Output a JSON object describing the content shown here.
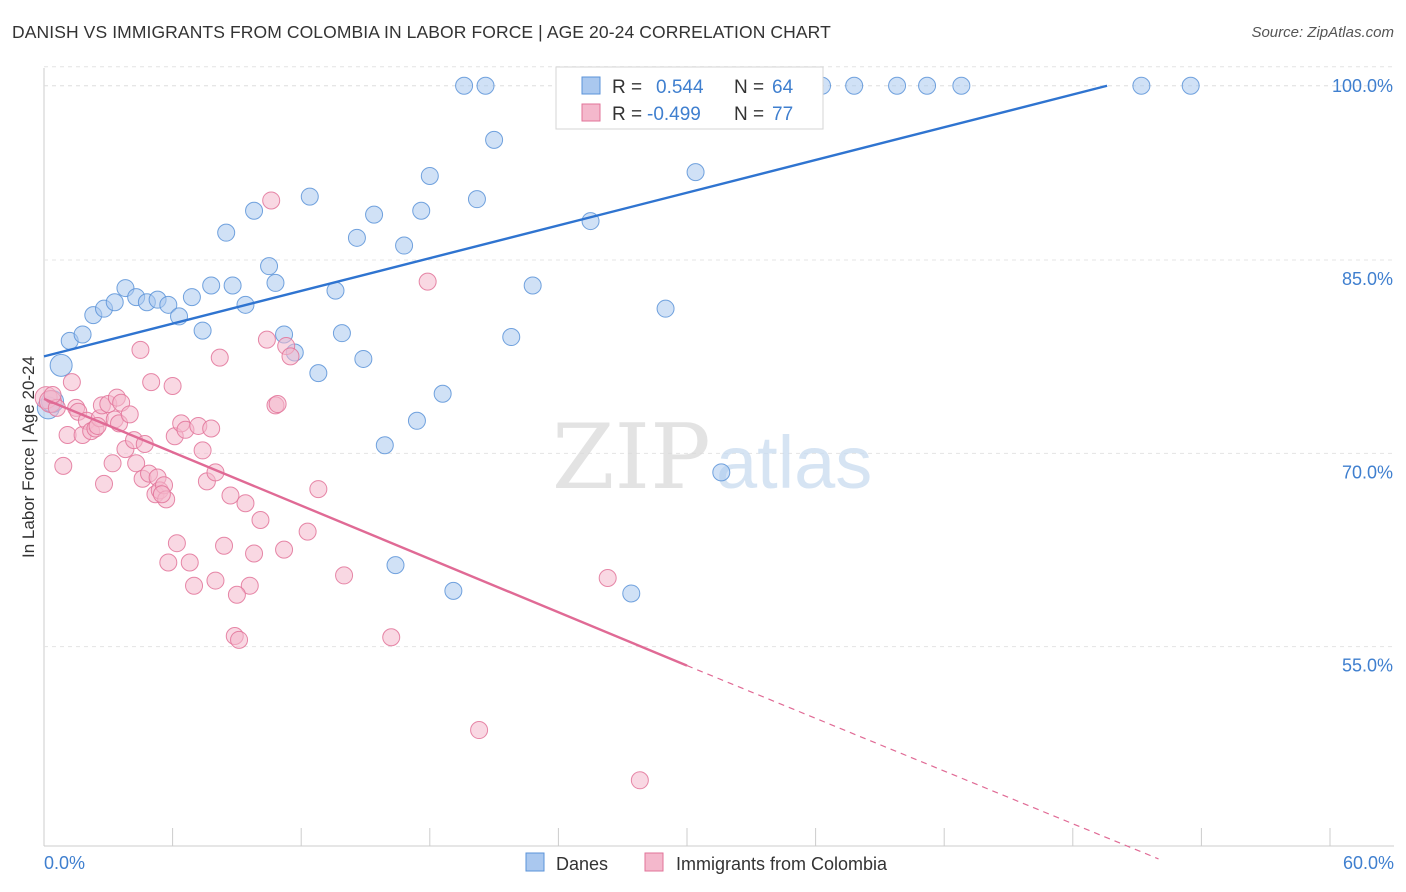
{
  "header": {
    "title": "DANISH VS IMMIGRANTS FROM COLOMBIA IN LABOR FORCE | AGE 20-24 CORRELATION CHART",
    "source": "Source: ZipAtlas.com"
  },
  "watermark": {
    "zip": "ZIP",
    "atlas": "atlas"
  },
  "legend_box": {
    "rows": [
      {
        "r_label": "R =",
        "r_value": "0.544",
        "n_label": "N =",
        "n_value": "64"
      },
      {
        "r_label": "R =",
        "r_value": "-0.499",
        "n_label": "N =",
        "n_value": "77"
      }
    ]
  },
  "bottom_legend": {
    "items": [
      "Danes",
      "Immigrants from Colombia"
    ]
  },
  "colors": {
    "blue": "#5b93d8",
    "blue_fill": "#aac8ef",
    "pink": "#e27399",
    "pink_fill": "#f4b8cc",
    "tick_text": "#3f7fcf"
  },
  "chart_data": {
    "type": "scatter",
    "title": "DANISH VS IMMIGRANTS FROM COLOMBIA IN LABOR FORCE | AGE 20-24 CORRELATION CHART",
    "xlabel": "",
    "ylabel": "In Labor Force | Age 20-24",
    "xlim": [
      0,
      60
    ],
    "ylim": [
      41,
      102
    ],
    "x_tick_labels": [
      "0.0%",
      "60.0%"
    ],
    "y_ticks": [
      55,
      70,
      85,
      100
    ],
    "y_tick_labels": [
      "55.0%",
      "70.0%",
      "85.0%",
      "100.0%"
    ],
    "grid": true,
    "legend_position": "top-center",
    "series": [
      {
        "name": "Danes",
        "color": "#5b93d8",
        "R": 0.544,
        "N": 64,
        "trend": {
          "x": [
            0,
            49.6
          ],
          "y": [
            79.0,
            100.0
          ],
          "dashed_to": null
        },
        "points": [
          [
            0.2,
            75.0
          ],
          [
            0.4,
            75.5
          ],
          [
            0.8,
            78.3
          ],
          [
            1.2,
            80.2
          ],
          [
            1.8,
            80.7
          ],
          [
            2.3,
            82.2
          ],
          [
            2.8,
            82.7
          ],
          [
            3.3,
            83.2
          ],
          [
            3.8,
            84.3
          ],
          [
            4.3,
            83.6
          ],
          [
            4.8,
            83.2
          ],
          [
            5.3,
            83.4
          ],
          [
            5.8,
            83.0
          ],
          [
            6.3,
            82.1
          ],
          [
            6.9,
            83.6
          ],
          [
            7.4,
            81.0
          ],
          [
            7.8,
            84.5
          ],
          [
            8.5,
            88.6
          ],
          [
            8.8,
            84.5
          ],
          [
            9.4,
            83.0
          ],
          [
            9.8,
            90.3
          ],
          [
            10.5,
            86.0
          ],
          [
            10.8,
            84.7
          ],
          [
            11.2,
            80.7
          ],
          [
            11.7,
            79.3
          ],
          [
            12.4,
            91.4
          ],
          [
            12.8,
            77.7
          ],
          [
            13.6,
            84.1
          ],
          [
            13.9,
            80.8
          ],
          [
            14.6,
            88.2
          ],
          [
            14.9,
            78.8
          ],
          [
            15.4,
            90.0
          ],
          [
            15.9,
            72.1
          ],
          [
            16.4,
            62.8
          ],
          [
            16.8,
            87.6
          ],
          [
            17.4,
            74.0
          ],
          [
            17.6,
            90.3
          ],
          [
            18.0,
            93.0
          ],
          [
            18.6,
            76.1
          ],
          [
            19.1,
            60.8
          ],
          [
            19.6,
            100.0
          ],
          [
            20.2,
            91.2
          ],
          [
            20.6,
            100.0
          ],
          [
            21.0,
            95.8
          ],
          [
            21.8,
            80.5
          ],
          [
            22.8,
            84.5
          ],
          [
            25.5,
            89.5
          ],
          [
            27.0,
            100.0
          ],
          [
            27.4,
            60.6
          ],
          [
            28.5,
            100.0
          ],
          [
            29.0,
            82.7
          ],
          [
            29.8,
            100.0
          ],
          [
            30.4,
            93.3
          ],
          [
            31.1,
            100.0
          ],
          [
            31.6,
            70.0
          ],
          [
            32.0,
            100.0
          ],
          [
            35.5,
            100.0
          ],
          [
            36.3,
            100.0
          ],
          [
            37.8,
            100.0
          ],
          [
            39.8,
            100.0
          ],
          [
            41.2,
            100.0
          ],
          [
            42.8,
            100.0
          ],
          [
            51.2,
            100.0
          ],
          [
            53.5,
            100.0
          ]
        ]
      },
      {
        "name": "Immigrants from Colombia",
        "color": "#e27399",
        "R": -0.499,
        "N": 77,
        "trend": {
          "x": [
            0,
            30.0
          ],
          "y": [
            75.7,
            55.0
          ],
          "dashed_to": [
            52.0,
            40.0
          ]
        },
        "points": [
          [
            0.1,
            75.8
          ],
          [
            0.3,
            75.5
          ],
          [
            0.6,
            75.0
          ],
          [
            0.9,
            70.5
          ],
          [
            1.1,
            72.9
          ],
          [
            1.3,
            77.0
          ],
          [
            1.5,
            75.0
          ],
          [
            1.6,
            74.7
          ],
          [
            1.8,
            72.9
          ],
          [
            2.0,
            74.0
          ],
          [
            2.2,
            73.2
          ],
          [
            2.4,
            73.4
          ],
          [
            2.6,
            74.2
          ],
          [
            2.7,
            75.2
          ],
          [
            2.8,
            69.1
          ],
          [
            3.0,
            75.3
          ],
          [
            3.2,
            70.7
          ],
          [
            3.3,
            74.1
          ],
          [
            3.4,
            75.8
          ],
          [
            3.5,
            73.8
          ],
          [
            3.6,
            75.4
          ],
          [
            3.8,
            71.8
          ],
          [
            4.0,
            74.5
          ],
          [
            4.2,
            72.5
          ],
          [
            4.3,
            70.7
          ],
          [
            4.5,
            79.5
          ],
          [
            4.6,
            69.5
          ],
          [
            4.7,
            72.2
          ],
          [
            4.9,
            69.9
          ],
          [
            5.0,
            77.0
          ],
          [
            5.2,
            68.3
          ],
          [
            5.3,
            69.6
          ],
          [
            5.4,
            68.6
          ],
          [
            5.6,
            69.0
          ],
          [
            5.7,
            67.9
          ],
          [
            5.8,
            63.0
          ],
          [
            6.0,
            76.7
          ],
          [
            6.1,
            72.8
          ],
          [
            6.2,
            64.5
          ],
          [
            6.4,
            73.8
          ],
          [
            6.6,
            73.3
          ],
          [
            6.8,
            63.0
          ],
          [
            7.0,
            61.2
          ],
          [
            7.2,
            73.6
          ],
          [
            7.4,
            71.7
          ],
          [
            7.6,
            69.3
          ],
          [
            7.8,
            73.4
          ],
          [
            8.0,
            70.0
          ],
          [
            8.0,
            61.6
          ],
          [
            8.2,
            78.9
          ],
          [
            8.4,
            64.3
          ],
          [
            8.7,
            68.2
          ],
          [
            8.9,
            57.3
          ],
          [
            9.1,
            57.0
          ],
          [
            9.4,
            67.6
          ],
          [
            9.6,
            61.2
          ],
          [
            9.8,
            63.7
          ],
          [
            10.1,
            66.3
          ],
          [
            10.4,
            80.3
          ],
          [
            10.6,
            91.1
          ],
          [
            10.8,
            75.2
          ],
          [
            10.9,
            75.3
          ],
          [
            11.3,
            79.8
          ],
          [
            11.5,
            79.0
          ],
          [
            12.3,
            65.4
          ],
          [
            12.8,
            68.7
          ],
          [
            14.0,
            62.0
          ],
          [
            16.2,
            57.2
          ],
          [
            17.9,
            84.8
          ],
          [
            20.3,
            50.0
          ],
          [
            26.3,
            61.8
          ],
          [
            27.8,
            46.1
          ],
          [
            0.4,
            76.0
          ],
          [
            2.5,
            73.6
          ],
          [
            5.5,
            68.3
          ],
          [
            9.0,
            60.5
          ],
          [
            11.2,
            64.0
          ]
        ]
      }
    ]
  }
}
